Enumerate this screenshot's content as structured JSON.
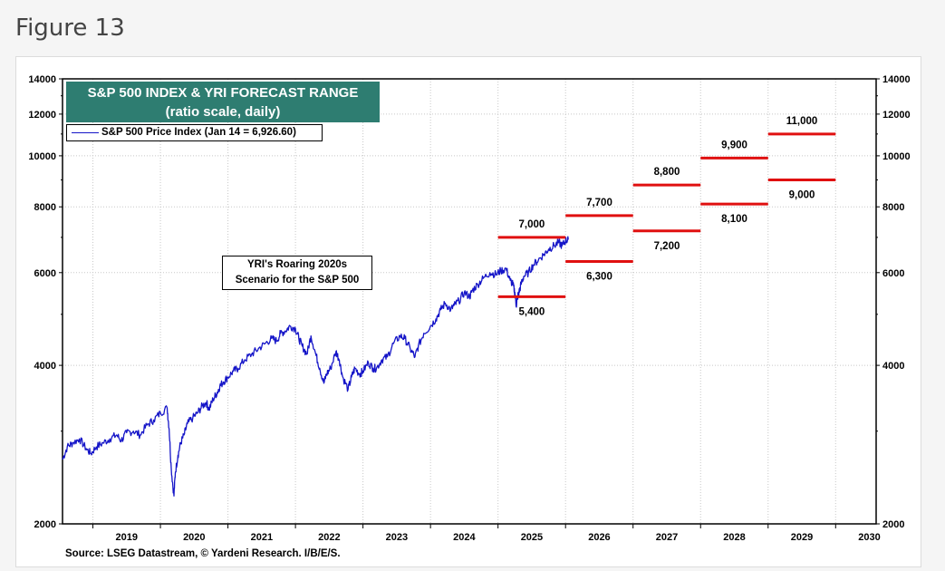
{
  "figure_label": "Figure 13",
  "colors": {
    "series": "#1515c8",
    "forecast": "#e01010",
    "title_bg": "#2e7d71"
  },
  "chart_data": {
    "type": "line",
    "title": "S&P 500 INDEX & YRI FORECAST RANGE",
    "subtitle": "(ratio scale, daily)",
    "legend": [
      "S&P 500 Price Index (Jan 14 = 6,926.60)"
    ],
    "legend_position": "top-left",
    "y_scale": "log",
    "ylim": [
      2000,
      14000
    ],
    "y_ticks_left": [
      "14000",
      "12000",
      "10000",
      "8000",
      "6000",
      "4000",
      "2000"
    ],
    "y_ticks_right": [
      "14000",
      "12000",
      "10000",
      "8000",
      "6000",
      "4000",
      "2000"
    ],
    "y_tick_values": [
      14000,
      12000,
      10000,
      8000,
      6000,
      4000,
      2000
    ],
    "xlim": [
      2018.55,
      2030.6
    ],
    "x_labels": [
      "2019",
      "2020",
      "2021",
      "2022",
      "2023",
      "2024",
      "2025",
      "2026",
      "2027",
      "2028",
      "2029",
      "2030"
    ],
    "series": [
      {
        "name": "S&P 500 Price Index",
        "x": [
          2018.55,
          2018.62,
          2018.7,
          2018.8,
          2018.9,
          2018.97,
          2019.05,
          2019.15,
          2019.25,
          2019.35,
          2019.42,
          2019.5,
          2019.6,
          2019.7,
          2019.8,
          2019.9,
          2020.0,
          2020.1,
          2020.13,
          2020.16,
          2020.2,
          2020.22,
          2020.26,
          2020.3,
          2020.35,
          2020.4,
          2020.48,
          2020.55,
          2020.62,
          2020.68,
          2020.72,
          2020.78,
          2020.84,
          2020.88,
          2020.93,
          2021.0,
          2021.08,
          2021.15,
          2021.25,
          2021.35,
          2021.45,
          2021.55,
          2021.65,
          2021.72,
          2021.78,
          2021.85,
          2021.92,
          2022.0,
          2022.05,
          2022.1,
          2022.17,
          2022.23,
          2022.3,
          2022.36,
          2022.42,
          2022.46,
          2022.52,
          2022.6,
          2022.65,
          2022.7,
          2022.78,
          2022.83,
          2022.88,
          2022.95,
          2023.0,
          2023.08,
          2023.15,
          2023.2,
          2023.28,
          2023.36,
          2023.45,
          2023.55,
          2023.62,
          2023.7,
          2023.77,
          2023.82,
          2023.9,
          2024.0,
          2024.08,
          2024.15,
          2024.22,
          2024.3,
          2024.35,
          2024.42,
          2024.5,
          2024.58,
          2024.62,
          2024.7,
          2024.78,
          2024.88,
          2024.97,
          2025.04,
          2025.12,
          2025.18,
          2025.22,
          2025.25,
          2025.27,
          2025.29,
          2025.31,
          2025.34,
          2025.38,
          2025.45,
          2025.52,
          2025.6,
          2025.68,
          2025.75,
          2025.83,
          2025.9,
          2025.95,
          2026.0,
          2026.04
        ],
        "values": [
          2650,
          2800,
          2850,
          2900,
          2780,
          2720,
          2800,
          2850,
          2900,
          2950,
          2880,
          2980,
          3000,
          2950,
          3080,
          3150,
          3250,
          3320,
          3020,
          2550,
          2260,
          2500,
          2700,
          2850,
          2950,
          3100,
          3180,
          3250,
          3350,
          3400,
          3300,
          3450,
          3550,
          3650,
          3720,
          3800,
          3900,
          3950,
          4100,
          4200,
          4300,
          4400,
          4500,
          4450,
          4600,
          4650,
          4750,
          4700,
          4500,
          4350,
          4200,
          4550,
          4200,
          3950,
          3700,
          3850,
          3950,
          4250,
          4100,
          3800,
          3600,
          3800,
          3950,
          3850,
          3900,
          4050,
          3950,
          3950,
          4100,
          4150,
          4400,
          4550,
          4500,
          4300,
          4150,
          4350,
          4600,
          4750,
          4900,
          5100,
          5250,
          5100,
          5200,
          5300,
          5500,
          5400,
          5550,
          5700,
          5850,
          6000,
          5950,
          6050,
          6100,
          5800,
          5700,
          5500,
          5200,
          5400,
          5500,
          5700,
          5900,
          6000,
          6200,
          6350,
          6500,
          6650,
          6750,
          6850,
          6750,
          6900,
          6927
        ]
      }
    ],
    "forecast_ranges": [
      {
        "year": "2025",
        "high": 7000,
        "low": 5400,
        "high_label": "7,000",
        "low_label": "5,400"
      },
      {
        "year": "2026",
        "high": 7700,
        "low": 6300,
        "high_label": "7,700",
        "low_label": "6,300"
      },
      {
        "year": "2027",
        "high": 8800,
        "low": 7200,
        "high_label": "8,800",
        "low_label": "7,200"
      },
      {
        "year": "2028",
        "high": 9900,
        "low": 8100,
        "high_label": "9,900",
        "low_label": "8,100"
      },
      {
        "year": "2029",
        "high": 11000,
        "low": 9000,
        "high_label": "11,000",
        "low_label": "9,000"
      }
    ],
    "annotation": [
      "YRI's Roaring 2020s",
      "Scenario for the S&P 500"
    ],
    "source": "Source: LSEG Datastream, © Yardeni Research. I/B/E/S."
  }
}
